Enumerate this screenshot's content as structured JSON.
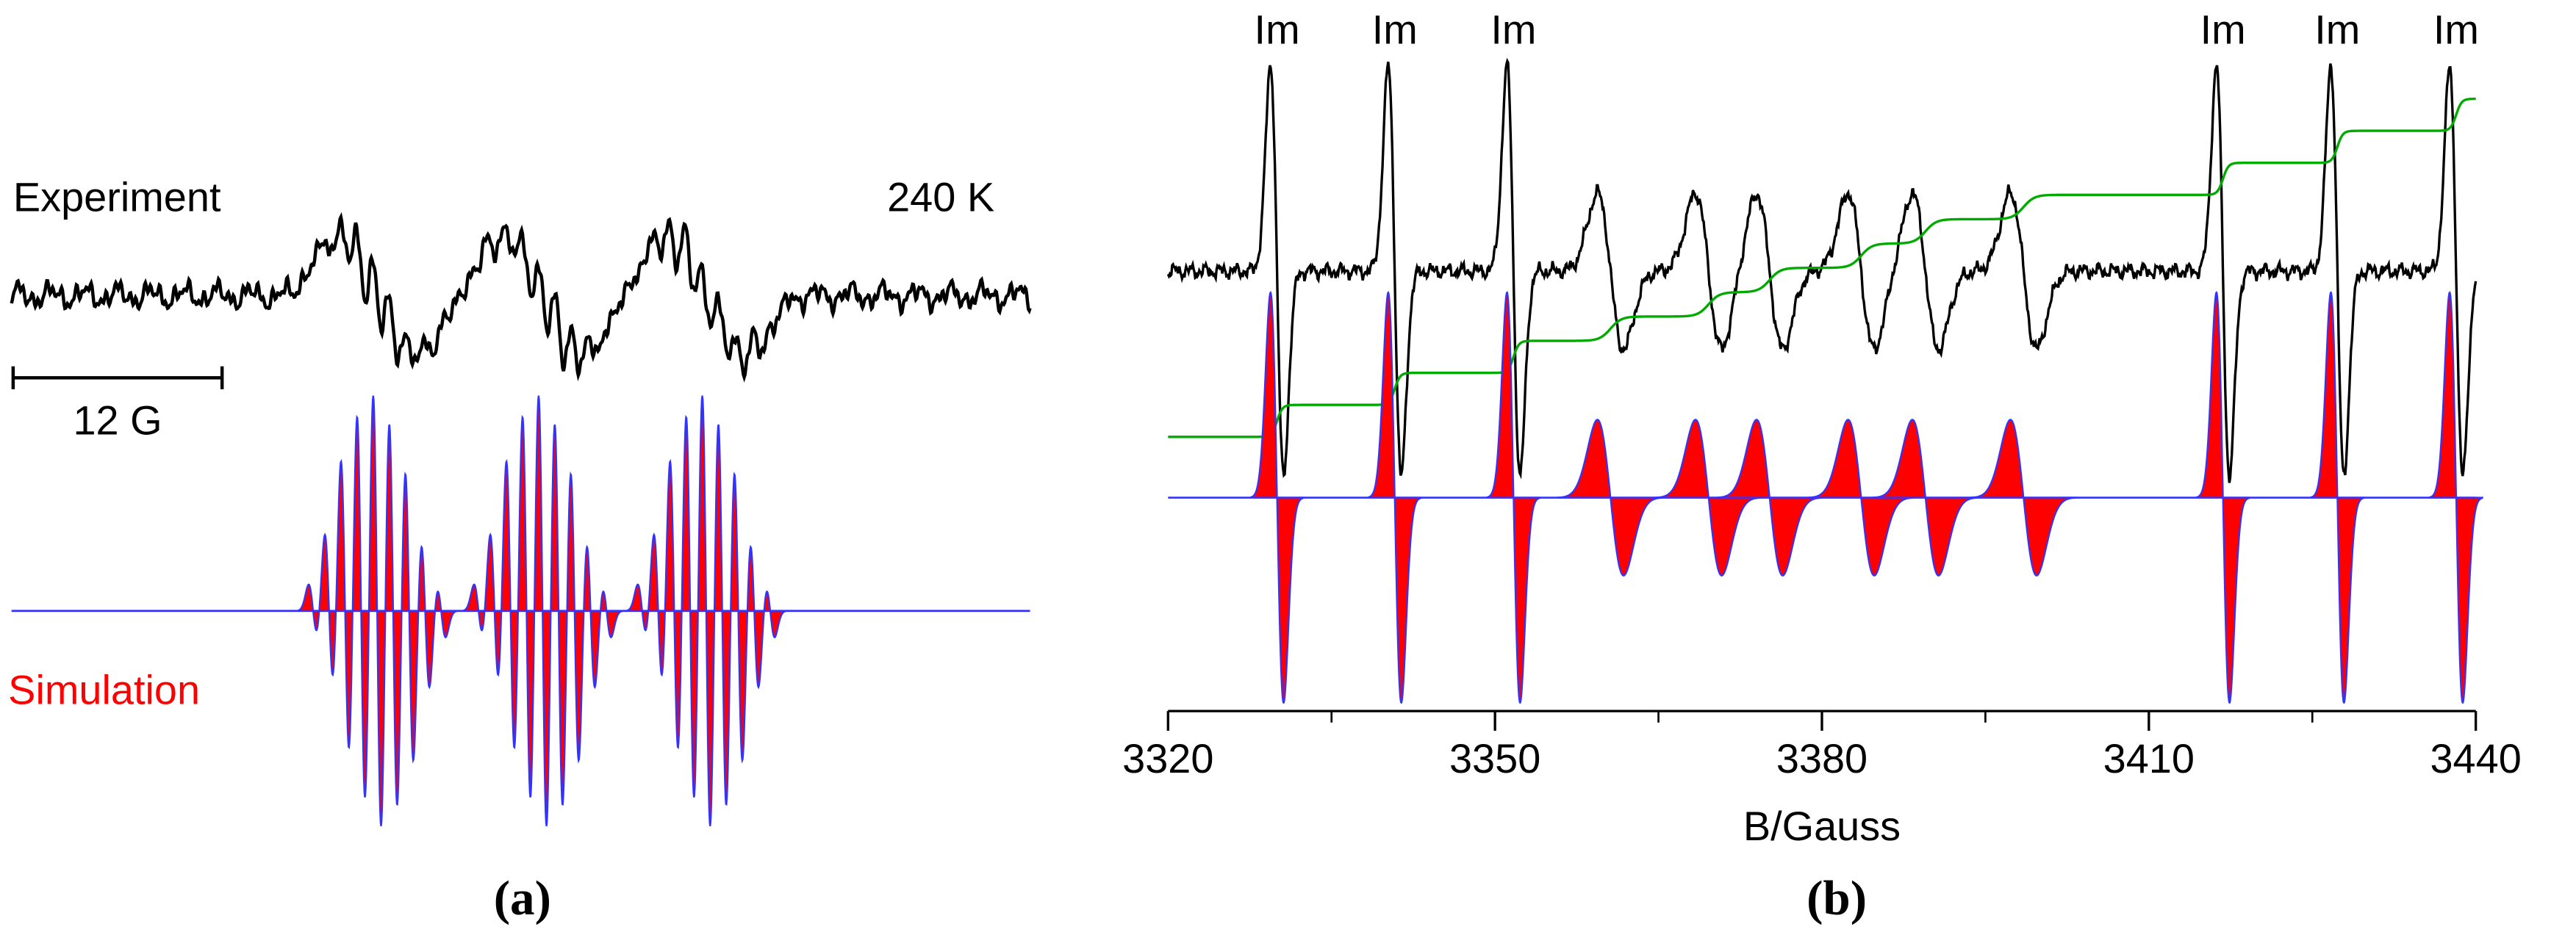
{
  "chart_data": [
    {
      "type": "spectrum",
      "panel_label": "(a)",
      "experiment_label": "Experiment",
      "temperature": "240 K",
      "simulation_label": "Simulation",
      "scale_bar": {
        "value": 12,
        "label": "12 G"
      },
      "xlim": [
        0,
        58.5
      ],
      "group_centers": [
        21.0,
        30.5,
        39.9
      ],
      "splitting": 0.92,
      "line_intensities": [
        1,
        3,
        6,
        8,
        9,
        8,
        6,
        3,
        1
      ],
      "sim_linewidth": 0.25,
      "exp_linewidth": 0.45,
      "experiment_color": "#000000",
      "simulation_color": "#ff0000",
      "simulation_edge_color": "#3333ff"
    },
    {
      "type": "spectrum",
      "panel_label": "(b)",
      "xlabel": "B/Gauss",
      "xlim": [
        3320,
        3440
      ],
      "xticks": [
        3320,
        3350,
        3380,
        3410,
        3440
      ],
      "xminor_ticks": [
        3335,
        3365,
        3395,
        3425
      ],
      "lines": [
        3330.0,
        3340.8,
        3351.7,
        3360.6,
        3369.6,
        3375.2,
        3383.6,
        3389.5,
        3398.5,
        3416.8,
        3427.3,
        3438.2
      ],
      "line_labels": [
        "Im",
        "Im",
        "Im",
        null,
        null,
        null,
        null,
        null,
        null,
        "Im",
        "Im",
        "Im"
      ],
      "amplitudes": [
        1,
        1,
        1,
        0.38,
        0.38,
        0.38,
        0.38,
        0.38,
        0.38,
        1,
        1,
        1
      ],
      "linewidths": [
        0.6,
        0.6,
        0.6,
        1.2,
        1.2,
        1.2,
        1.2,
        1.2,
        1.2,
        0.6,
        0.6,
        0.6
      ],
      "experiment_color": "#000000",
      "simulation_color": "#ff0000",
      "simulation_edge_color": "#3333ff",
      "integral_color": "#00aa00"
    }
  ]
}
